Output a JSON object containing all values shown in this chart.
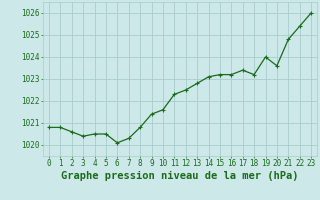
{
  "x": [
    0,
    1,
    2,
    3,
    4,
    5,
    6,
    7,
    8,
    9,
    10,
    11,
    12,
    13,
    14,
    15,
    16,
    17,
    18,
    19,
    20,
    21,
    22,
    23
  ],
  "y": [
    1020.8,
    1020.8,
    1020.6,
    1020.4,
    1020.5,
    1020.5,
    1020.1,
    1020.3,
    1020.8,
    1021.4,
    1021.6,
    1022.3,
    1022.5,
    1022.8,
    1023.1,
    1023.2,
    1023.2,
    1023.4,
    1023.2,
    1024.0,
    1023.6,
    1024.8,
    1025.4,
    1026.0
  ],
  "line_color": "#1a6b1a",
  "marker_color": "#1a6b1a",
  "bg_color": "#cce8e8",
  "grid_color": "#aacccc",
  "xlabel": "Graphe pression niveau de la mer (hPa)",
  "xlabel_color": "#1a6b1a",
  "tick_label_color": "#1a6b1a",
  "ylim": [
    1019.5,
    1026.5
  ],
  "yticks": [
    1020,
    1021,
    1022,
    1023,
    1024,
    1025,
    1026
  ],
  "xticks": [
    0,
    1,
    2,
    3,
    4,
    5,
    6,
    7,
    8,
    9,
    10,
    11,
    12,
    13,
    14,
    15,
    16,
    17,
    18,
    19,
    20,
    21,
    22,
    23
  ],
  "xtick_labels": [
    "0",
    "1",
    "2",
    "3",
    "4",
    "5",
    "6",
    "7",
    "8",
    "9",
    "10",
    "11",
    "12",
    "13",
    "14",
    "15",
    "16",
    "17",
    "18",
    "19",
    "20",
    "21",
    "22",
    "23"
  ],
  "xlabel_fontsize": 7.5,
  "tick_fontsize": 5.5,
  "line_width": 0.9,
  "marker_size": 2.5
}
